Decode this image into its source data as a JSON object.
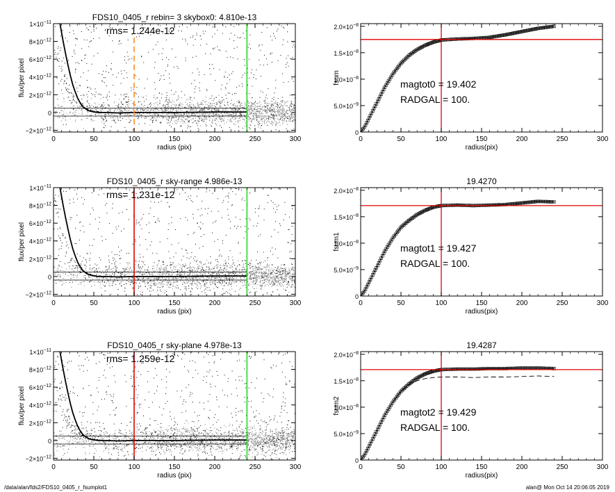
{
  "footer": {
    "left": "/data/alan/fds2/FDS10_0405_r_fsumplot1",
    "right": "alan@  Mon Oct 14 20:06:05 2019"
  },
  "colors": {
    "points_dark": "#000000",
    "points_gray": "#9a9a9a",
    "profile": "#000000",
    "marker_orange": "#ff8c1a",
    "marker_red": "#e00000",
    "marker_green": "#22dd22",
    "curve": "#000000"
  },
  "chart_data": [
    {
      "id": "flux1",
      "type": "scatter",
      "title": "FDS10_0405_r rebin= 3    skybox0:  4.810e-13",
      "annotation": "rms= 1.244e-12",
      "xlabel": "radius (pix)",
      "ylabel": "flux/per pixel",
      "xlim": [
        0,
        300
      ],
      "ylim": [
        -2.2e-12,
        1e-11
      ],
      "xticks": [
        "0",
        "50",
        "100",
        "150",
        "200",
        "250",
        "300"
      ],
      "yticks": [
        {
          "value": -2e-12,
          "mant": "−2×10",
          "exp": "−12"
        },
        {
          "value": 0,
          "mant": "0",
          "exp": ""
        },
        {
          "value": 2e-12,
          "mant": "2×10",
          "exp": "−12"
        },
        {
          "value": 4e-12,
          "mant": "4×10",
          "exp": "−12"
        },
        {
          "value": 6e-12,
          "mant": "6×10",
          "exp": "−12"
        },
        {
          "value": 8e-12,
          "mant": "8×10",
          "exp": "−12"
        },
        {
          "value": 1e-11,
          "mant": "1×10",
          "exp": "−11"
        }
      ],
      "marker_x": 100,
      "marker_style": "dashed",
      "marker_color": "orange",
      "limit_x": 240,
      "hlines": [
        4.8e-13,
        -4e-13
      ],
      "profile": [
        [
          8,
          1e-11
        ],
        [
          10,
          9e-12
        ],
        [
          12,
          8e-12
        ],
        [
          15,
          6.6e-12
        ],
        [
          18,
          5.3e-12
        ],
        [
          21,
          4.1e-12
        ],
        [
          24,
          3.1e-12
        ],
        [
          27,
          2.3e-12
        ],
        [
          30,
          1.6e-12
        ],
        [
          33,
          1.1e-12
        ],
        [
          36,
          7e-13
        ],
        [
          40,
          4e-13
        ],
        [
          44,
          2e-13
        ],
        [
          48,
          1e-13
        ],
        [
          55,
          0
        ],
        [
          65,
          0
        ],
        [
          80,
          -5e-14
        ],
        [
          100,
          0
        ],
        [
          150,
          0
        ],
        [
          200,
          5e-14
        ],
        [
          240,
          5e-14
        ]
      ]
    },
    {
      "id": "fsum0",
      "type": "line",
      "title": "",
      "annotation_lines": [
        "magtot0 =  19.402",
        "RADGAL =    100."
      ],
      "xlabel": "radius(pix)",
      "ylabel": "fsum",
      "xlim": [
        0,
        300
      ],
      "ylim": [
        0,
        2.05e-08
      ],
      "xticks": [
        "0",
        "50",
        "100",
        "150",
        "200",
        "250",
        "300"
      ],
      "yticks": [
        {
          "value": 0,
          "mant": "0",
          "exp": ""
        },
        {
          "value": 5e-09,
          "mant": "5.0×10",
          "exp": "−9"
        },
        {
          "value": 1e-08,
          "mant": "1.0×10",
          "exp": "−8"
        },
        {
          "value": 1.5e-08,
          "mant": "1.5×10",
          "exp": "−8"
        },
        {
          "value": 2e-08,
          "mant": "2.0×10",
          "exp": "−8"
        }
      ],
      "vline_x": 100,
      "hline_y": 1.75e-08,
      "curve": [
        [
          0,
          0
        ],
        [
          5,
          1e-09
        ],
        [
          10,
          2.5e-09
        ],
        [
          20,
          5.5e-09
        ],
        [
          30,
          8.5e-09
        ],
        [
          40,
          1.1e-08
        ],
        [
          50,
          1.3e-08
        ],
        [
          60,
          1.45e-08
        ],
        [
          70,
          1.56e-08
        ],
        [
          80,
          1.64e-08
        ],
        [
          90,
          1.7e-08
        ],
        [
          100,
          1.74e-08
        ],
        [
          120,
          1.76e-08
        ],
        [
          140,
          1.77e-08
        ],
        [
          160,
          1.79e-08
        ],
        [
          180,
          1.84e-08
        ],
        [
          200,
          1.9e-08
        ],
        [
          220,
          1.96e-08
        ],
        [
          240,
          2e-08
        ]
      ]
    },
    {
      "id": "flux2",
      "type": "scatter",
      "title": "FDS10_0405_r sky-range  4.986e-13",
      "annotation": "rms= 1.231e-12",
      "xlabel": "radius (pix)",
      "ylabel": "flux/per pixel",
      "xlim": [
        0,
        300
      ],
      "ylim": [
        -2.2e-12,
        1e-11
      ],
      "xticks": [
        "0",
        "50",
        "100",
        "150",
        "200",
        "250",
        "300"
      ],
      "yticks": [
        {
          "value": -2e-12,
          "mant": "−2×10",
          "exp": "−12"
        },
        {
          "value": 0,
          "mant": "0",
          "exp": ""
        },
        {
          "value": 2e-12,
          "mant": "2×10",
          "exp": "−12"
        },
        {
          "value": 4e-12,
          "mant": "4×10",
          "exp": "−12"
        },
        {
          "value": 6e-12,
          "mant": "6×10",
          "exp": "−12"
        },
        {
          "value": 8e-12,
          "mant": "8×10",
          "exp": "−12"
        },
        {
          "value": 1e-11,
          "mant": "1×10",
          "exp": "−11"
        }
      ],
      "marker_x": 100,
      "marker_style": "solid",
      "marker_color": "red",
      "limit_x": 240,
      "hlines": [
        4.98e-13,
        -4e-13
      ],
      "profile": [
        [
          8,
          1e-11
        ],
        [
          10,
          9e-12
        ],
        [
          12,
          8e-12
        ],
        [
          15,
          6.6e-12
        ],
        [
          18,
          5.3e-12
        ],
        [
          21,
          4.1e-12
        ],
        [
          24,
          3.1e-12
        ],
        [
          27,
          2.3e-12
        ],
        [
          30,
          1.6e-12
        ],
        [
          33,
          1.1e-12
        ],
        [
          36,
          7e-13
        ],
        [
          40,
          4e-13
        ],
        [
          44,
          2e-13
        ],
        [
          48,
          1e-13
        ],
        [
          55,
          0
        ],
        [
          65,
          0
        ],
        [
          80,
          -5e-14
        ],
        [
          100,
          0
        ],
        [
          150,
          0
        ],
        [
          200,
          5e-14
        ],
        [
          240,
          5e-14
        ]
      ]
    },
    {
      "id": "fsum1",
      "type": "line",
      "title": "19.4270",
      "annotation_lines": [
        "magtot1 =  19.427",
        "RADGAL =    100."
      ],
      "xlabel": "radius(pix)",
      "ylabel": "fsum1",
      "xlim": [
        0,
        300
      ],
      "ylim": [
        0,
        2.05e-08
      ],
      "xticks": [
        "0",
        "50",
        "100",
        "150",
        "200",
        "250",
        "300"
      ],
      "yticks": [
        {
          "value": 0,
          "mant": "0",
          "exp": ""
        },
        {
          "value": 5e-09,
          "mant": "5.0×10",
          "exp": "−9"
        },
        {
          "value": 1e-08,
          "mant": "1.0×10",
          "exp": "−8"
        },
        {
          "value": 1.5e-08,
          "mant": "1.5×10",
          "exp": "−8"
        },
        {
          "value": 2e-08,
          "mant": "2.0×10",
          "exp": "−8"
        }
      ],
      "vline_x": 100,
      "hline_y": 1.71e-08,
      "curve": [
        [
          0,
          0
        ],
        [
          5,
          1e-09
        ],
        [
          10,
          2.5e-09
        ],
        [
          20,
          5.5e-09
        ],
        [
          30,
          8.5e-09
        ],
        [
          40,
          1.1e-08
        ],
        [
          50,
          1.3e-08
        ],
        [
          60,
          1.43e-08
        ],
        [
          70,
          1.54e-08
        ],
        [
          80,
          1.62e-08
        ],
        [
          90,
          1.68e-08
        ],
        [
          100,
          1.71e-08
        ],
        [
          120,
          1.72e-08
        ],
        [
          140,
          1.71e-08
        ],
        [
          160,
          1.72e-08
        ],
        [
          180,
          1.73e-08
        ],
        [
          200,
          1.76e-08
        ],
        [
          220,
          1.79e-08
        ],
        [
          240,
          1.78e-08
        ]
      ]
    },
    {
      "id": "flux3",
      "type": "scatter",
      "title": "FDS10_0405_r sky-plane  4.978e-13",
      "annotation": "rms= 1.259e-12",
      "xlabel": "radius (pix)",
      "ylabel": "flux/per pixel",
      "xlim": [
        0,
        300
      ],
      "ylim": [
        -2.2e-12,
        1e-11
      ],
      "xticks": [
        "0",
        "50",
        "100",
        "150",
        "200",
        "250",
        "300"
      ],
      "yticks": [
        {
          "value": -2e-12,
          "mant": "−2×10",
          "exp": "−12"
        },
        {
          "value": 0,
          "mant": "0",
          "exp": ""
        },
        {
          "value": 2e-12,
          "mant": "2×10",
          "exp": "−12"
        },
        {
          "value": 4e-12,
          "mant": "4×10",
          "exp": "−12"
        },
        {
          "value": 6e-12,
          "mant": "6×10",
          "exp": "−12"
        },
        {
          "value": 8e-12,
          "mant": "8×10",
          "exp": "−12"
        },
        {
          "value": 1e-11,
          "mant": "1×10",
          "exp": "−11"
        }
      ],
      "marker_x": 100,
      "marker_style": "solid",
      "marker_color": "red",
      "limit_x": 240,
      "hlines": [
        4.97e-13,
        -4e-13
      ],
      "profile": [
        [
          8,
          1e-11
        ],
        [
          10,
          9e-12
        ],
        [
          12,
          8e-12
        ],
        [
          15,
          6.6e-12
        ],
        [
          18,
          5.3e-12
        ],
        [
          21,
          4.1e-12
        ],
        [
          24,
          3.1e-12
        ],
        [
          27,
          2.3e-12
        ],
        [
          30,
          1.6e-12
        ],
        [
          33,
          1.1e-12
        ],
        [
          36,
          7e-13
        ],
        [
          40,
          4e-13
        ],
        [
          44,
          2e-13
        ],
        [
          48,
          1e-13
        ],
        [
          55,
          0
        ],
        [
          65,
          0
        ],
        [
          80,
          -5e-14
        ],
        [
          100,
          0
        ],
        [
          150,
          0
        ],
        [
          200,
          5e-14
        ],
        [
          240,
          5e-14
        ]
      ]
    },
    {
      "id": "fsum2",
      "type": "line",
      "title": "19.4287",
      "annotation_lines": [
        "magtot2 =  19.429",
        "RADGAL =    100."
      ],
      "xlabel": "radius(pix)",
      "ylabel": "fsum2",
      "xlim": [
        0,
        300
      ],
      "ylim": [
        0,
        2.05e-08
      ],
      "xticks": [
        "0",
        "50",
        "100",
        "150",
        "200",
        "250",
        "300"
      ],
      "yticks": [
        {
          "value": 0,
          "mant": "0",
          "exp": ""
        },
        {
          "value": 5e-09,
          "mant": "5.0×10",
          "exp": "−9"
        },
        {
          "value": 1e-08,
          "mant": "1.0×10",
          "exp": "−8"
        },
        {
          "value": 1.5e-08,
          "mant": "1.5×10",
          "exp": "−8"
        },
        {
          "value": 2e-08,
          "mant": "2.0×10",
          "exp": "−8"
        }
      ],
      "vline_x": 100,
      "hline_y": 1.71e-08,
      "curve": [
        [
          0,
          0
        ],
        [
          5,
          1e-09
        ],
        [
          10,
          2.5e-09
        ],
        [
          20,
          5.5e-09
        ],
        [
          30,
          8.5e-09
        ],
        [
          40,
          1.1e-08
        ],
        [
          50,
          1.3e-08
        ],
        [
          60,
          1.44e-08
        ],
        [
          70,
          1.55e-08
        ],
        [
          80,
          1.63e-08
        ],
        [
          90,
          1.68e-08
        ],
        [
          100,
          1.71e-08
        ],
        [
          120,
          1.72e-08
        ],
        [
          140,
          1.72e-08
        ],
        [
          160,
          1.73e-08
        ],
        [
          180,
          1.73e-08
        ],
        [
          200,
          1.74e-08
        ],
        [
          220,
          1.74e-08
        ],
        [
          240,
          1.73e-08
        ]
      ],
      "dashed_curve": [
        [
          40,
          1.1e-08
        ],
        [
          50,
          1.3e-08
        ],
        [
          60,
          1.42e-08
        ],
        [
          70,
          1.5e-08
        ],
        [
          80,
          1.54e-08
        ],
        [
          90,
          1.56e-08
        ],
        [
          100,
          1.57e-08
        ],
        [
          120,
          1.57e-08
        ],
        [
          140,
          1.56e-08
        ],
        [
          160,
          1.57e-08
        ],
        [
          180,
          1.57e-08
        ],
        [
          200,
          1.58e-08
        ],
        [
          220,
          1.59e-08
        ],
        [
          240,
          1.58e-08
        ]
      ]
    }
  ]
}
